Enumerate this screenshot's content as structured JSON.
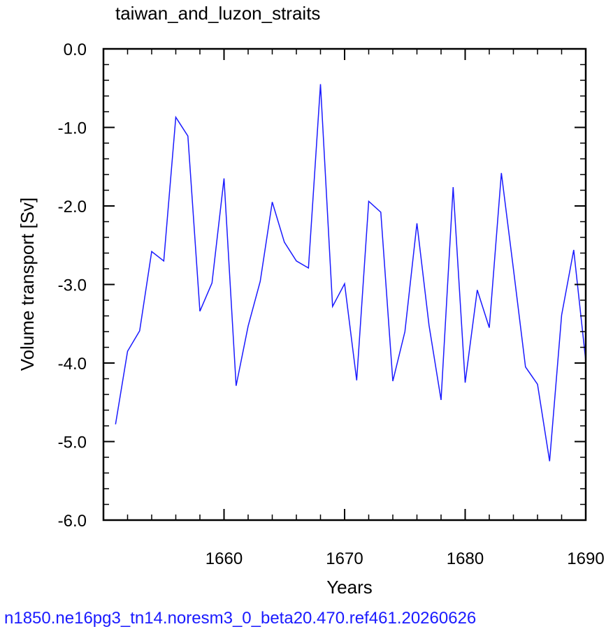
{
  "chart_data": {
    "type": "line",
    "title": "taiwan_and_luzon_straits",
    "xlabel": "Years",
    "ylabel": "Volume transport [Sv]",
    "xlim": [
      1650,
      1690
    ],
    "ylim": [
      -6.0,
      0.0
    ],
    "x_ticks": [
      1660,
      1670,
      1680,
      1690
    ],
    "y_ticks": [
      0.0,
      -1.0,
      -2.0,
      -3.0,
      -4.0,
      -5.0,
      -6.0
    ],
    "x_tick_labels": [
      "1660",
      "1670",
      "1680",
      "1690"
    ],
    "y_tick_labels": [
      "0.0",
      "-1.0",
      "-2.0",
      "-3.0",
      "-4.0",
      "-5.0",
      "-6.0"
    ],
    "grid": false,
    "line_color": "#1a1aff",
    "x": [
      1651,
      1652,
      1653,
      1654,
      1655,
      1656,
      1657,
      1658,
      1659,
      1660,
      1661,
      1662,
      1663,
      1664,
      1665,
      1666,
      1667,
      1668,
      1669,
      1670,
      1671,
      1672,
      1673,
      1674,
      1675,
      1676,
      1677,
      1678,
      1679,
      1680,
      1681,
      1682,
      1683,
      1684,
      1685,
      1686,
      1687,
      1688,
      1689,
      1690
    ],
    "y": [
      -4.78,
      -3.85,
      -3.59,
      -2.58,
      -2.7,
      -0.87,
      -1.11,
      -3.34,
      -2.98,
      -1.65,
      -4.29,
      -3.53,
      -2.96,
      -1.95,
      -2.46,
      -2.7,
      -2.79,
      -0.45,
      -3.28,
      -2.99,
      -4.22,
      -1.94,
      -2.08,
      -4.23,
      -3.6,
      -2.22,
      -3.52,
      -4.47,
      -1.76,
      -4.25,
      -3.07,
      -3.55,
      -1.58,
      -2.8,
      -4.05,
      -4.27,
      -5.25,
      -3.39,
      -2.56,
      -3.97
    ]
  },
  "footer_text": "n1850.ne16pg3_tn14.noresm3_0_beta20.470.ref461.20260626"
}
